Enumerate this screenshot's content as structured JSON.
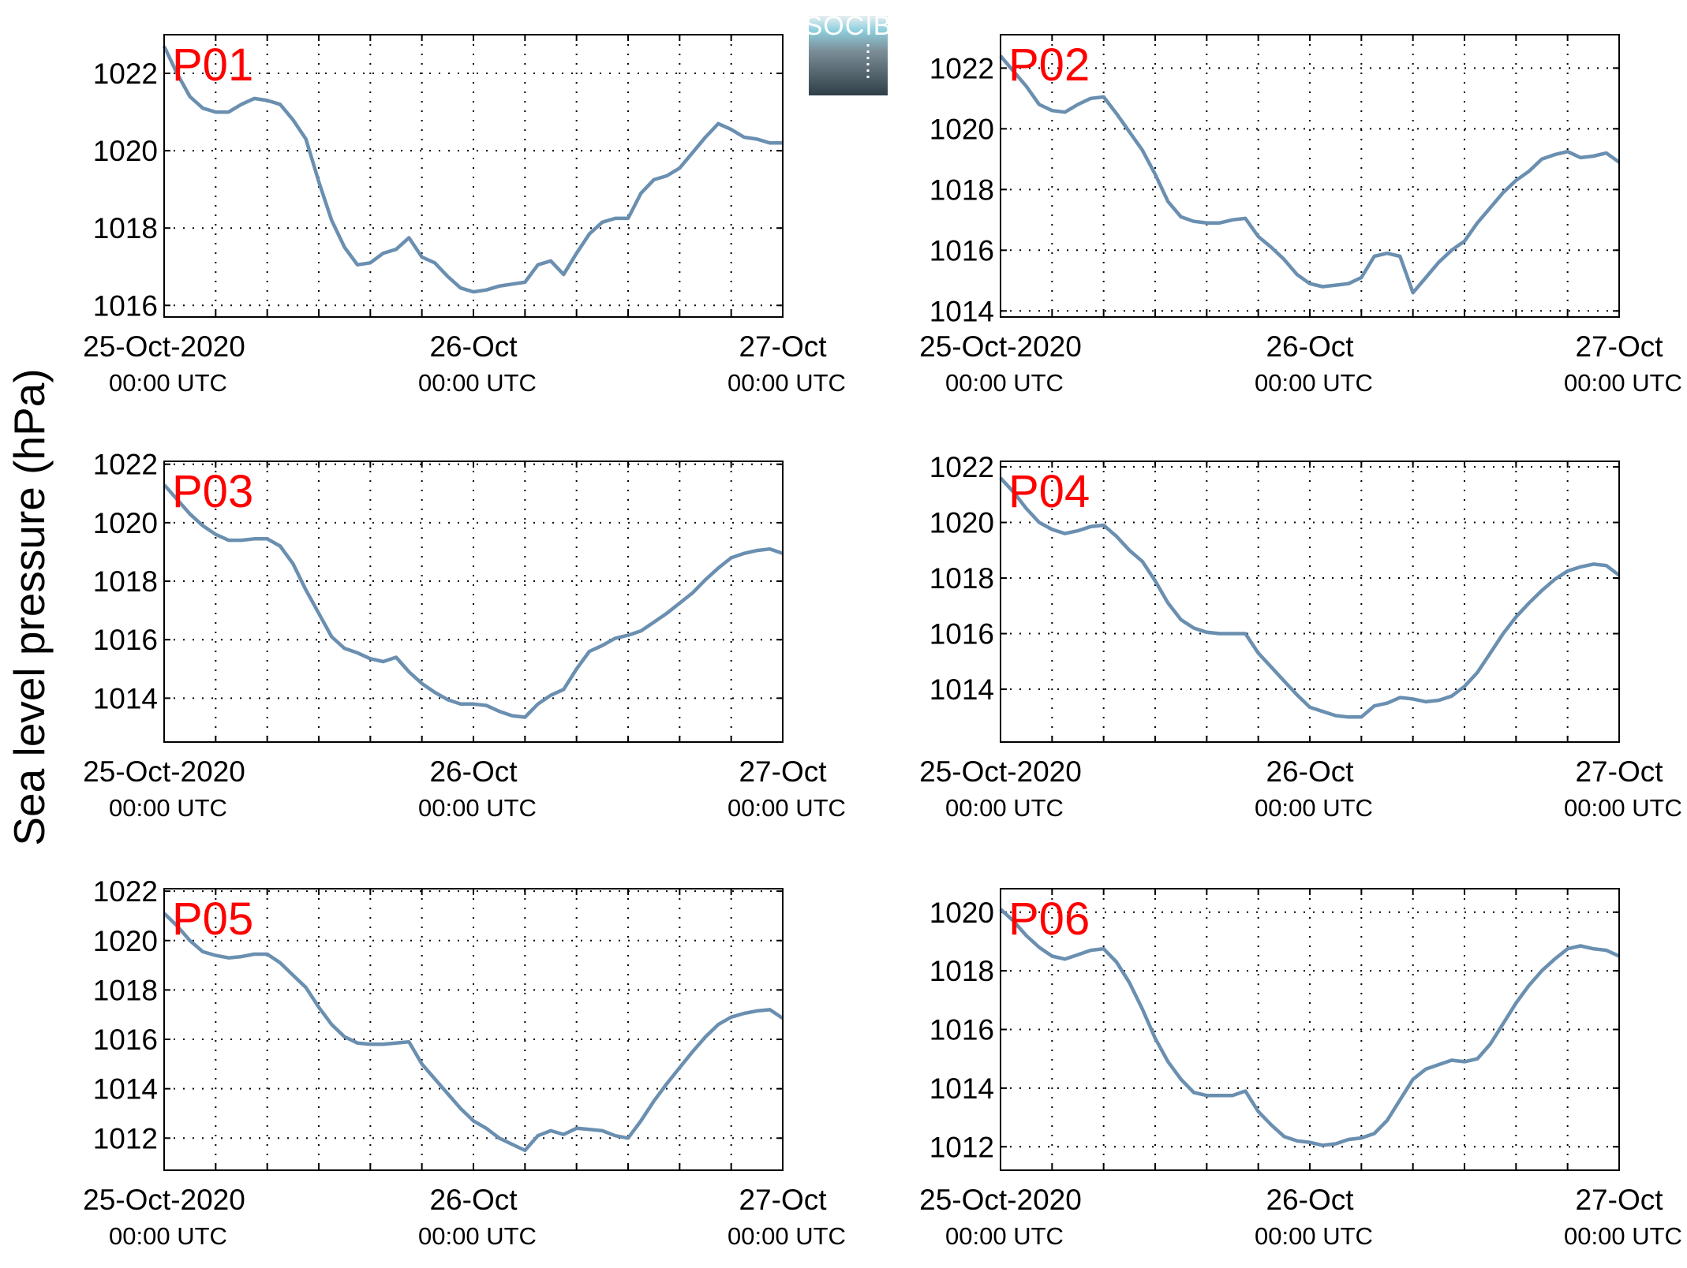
{
  "figure": {
    "ylabel": "Sea level pressure (hPa)",
    "logo_text": "SOCIB",
    "colors": {
      "line": "#6a8fb0",
      "label": "#ff0000",
      "axis": "#000000"
    }
  },
  "chart_data": [
    {
      "type": "line",
      "panel": "P01",
      "xlim": [
        0,
        48
      ],
      "ylim": [
        1015.7,
        1023.0
      ],
      "yticks": [
        1016,
        1018,
        1020,
        1022
      ],
      "xticks": [
        {
          "t": 0,
          "line1": "25-Oct-2020",
          "line2": "00:00 UTC"
        },
        {
          "t": 24,
          "line1": "26-Oct",
          "line2": "00:00 UTC"
        },
        {
          "t": 48,
          "line1": "27-Oct",
          "line2": "00:00 UTC"
        }
      ],
      "grid": true,
      "t": [
        0,
        1,
        2,
        3,
        4,
        5,
        6,
        7,
        8,
        9,
        10,
        11,
        12,
        13,
        14,
        15,
        16,
        17,
        18,
        19,
        20,
        21,
        22,
        23,
        24,
        25,
        26,
        27,
        28,
        29,
        30,
        31,
        32,
        33,
        34,
        35,
        36,
        37,
        38,
        39,
        40,
        41,
        42,
        43,
        44,
        45,
        46,
        47,
        48
      ],
      "values": [
        1022.7,
        1022.0,
        1021.4,
        1021.1,
        1021.0,
        1021.0,
        1021.2,
        1021.35,
        1021.3,
        1021.2,
        1020.8,
        1020.3,
        1019.2,
        1018.2,
        1017.5,
        1017.05,
        1017.1,
        1017.35,
        1017.45,
        1017.75,
        1017.25,
        1017.1,
        1016.75,
        1016.45,
        1016.35,
        1016.4,
        1016.5,
        1016.55,
        1016.6,
        1017.05,
        1017.15,
        1016.8,
        1017.35,
        1017.85,
        1018.15,
        1018.25,
        1018.25,
        1018.9,
        1019.25,
        1019.35,
        1019.55,
        1019.95,
        1020.35,
        1020.7,
        1020.55,
        1020.35,
        1020.3,
        1020.2,
        1020.2
      ],
      "label": "P01"
    },
    {
      "type": "line",
      "panel": "P02",
      "xlim": [
        0,
        48
      ],
      "ylim": [
        1013.8,
        1023.1
      ],
      "yticks": [
        1014,
        1016,
        1018,
        1020,
        1022
      ],
      "xticks": [
        {
          "t": 0,
          "line1": "25-Oct-2020",
          "line2": "00:00 UTC"
        },
        {
          "t": 24,
          "line1": "26-Oct",
          "line2": "00:00 UTC"
        },
        {
          "t": 48,
          "line1": "27-Oct",
          "line2": "00:00 UTC"
        }
      ],
      "grid": true,
      "t": [
        0,
        1,
        2,
        3,
        4,
        5,
        6,
        7,
        8,
        9,
        10,
        11,
        12,
        13,
        14,
        15,
        16,
        17,
        18,
        19,
        20,
        21,
        22,
        23,
        24,
        25,
        26,
        27,
        28,
        29,
        30,
        31,
        32,
        33,
        34,
        35,
        36,
        37,
        38,
        39,
        40,
        41,
        42,
        43,
        44,
        45,
        46,
        47,
        48
      ],
      "values": [
        1022.4,
        1021.9,
        1021.4,
        1020.8,
        1020.6,
        1020.55,
        1020.8,
        1021.0,
        1021.05,
        1020.5,
        1019.9,
        1019.3,
        1018.5,
        1017.6,
        1017.1,
        1016.95,
        1016.9,
        1016.9,
        1017.0,
        1017.05,
        1016.45,
        1016.1,
        1015.7,
        1015.2,
        1014.9,
        1014.8,
        1014.85,
        1014.9,
        1015.1,
        1015.8,
        1015.9,
        1015.8,
        1014.6,
        1015.1,
        1015.6,
        1016.0,
        1016.3,
        1016.9,
        1017.4,
        1017.9,
        1018.3,
        1018.6,
        1019.0,
        1019.15,
        1019.25,
        1019.05,
        1019.1,
        1019.2,
        1018.9
      ],
      "label": "P02"
    },
    {
      "type": "line",
      "panel": "P03",
      "xlim": [
        0,
        48
      ],
      "ylim": [
        1012.5,
        1022.1
      ],
      "yticks": [
        1014,
        1016,
        1018,
        1020,
        1022
      ],
      "xticks": [
        {
          "t": 0,
          "line1": "25-Oct-2020",
          "line2": "00:00 UTC"
        },
        {
          "t": 24,
          "line1": "26-Oct",
          "line2": "00:00 UTC"
        },
        {
          "t": 48,
          "line1": "27-Oct",
          "line2": "00:00 UTC"
        }
      ],
      "grid": true,
      "t": [
        0,
        1,
        2,
        3,
        4,
        5,
        6,
        7,
        8,
        9,
        10,
        11,
        12,
        13,
        14,
        15,
        16,
        17,
        18,
        19,
        20,
        21,
        22,
        23,
        24,
        25,
        26,
        27,
        28,
        29,
        30,
        31,
        32,
        33,
        34,
        35,
        36,
        37,
        38,
        39,
        40,
        41,
        42,
        43,
        44,
        45,
        46,
        47,
        48
      ],
      "values": [
        1021.3,
        1020.8,
        1020.3,
        1019.9,
        1019.6,
        1019.4,
        1019.4,
        1019.45,
        1019.45,
        1019.2,
        1018.6,
        1017.7,
        1016.9,
        1016.1,
        1015.7,
        1015.55,
        1015.35,
        1015.25,
        1015.4,
        1014.9,
        1014.5,
        1014.2,
        1013.95,
        1013.8,
        1013.8,
        1013.75,
        1013.55,
        1013.4,
        1013.35,
        1013.8,
        1014.1,
        1014.3,
        1015.0,
        1015.6,
        1015.8,
        1016.05,
        1016.15,
        1016.3,
        1016.6,
        1016.9,
        1017.25,
        1017.6,
        1018.05,
        1018.45,
        1018.8,
        1018.95,
        1019.05,
        1019.1,
        1018.95
      ],
      "label": "P03"
    },
    {
      "type": "line",
      "panel": "P04",
      "xlim": [
        0,
        48
      ],
      "ylim": [
        1012.1,
        1022.2
      ],
      "yticks": [
        1014,
        1016,
        1018,
        1020,
        1022
      ],
      "xticks": [
        {
          "t": 0,
          "line1": "25-Oct-2020",
          "line2": "00:00 UTC"
        },
        {
          "t": 24,
          "line1": "26-Oct",
          "line2": "00:00 UTC"
        },
        {
          "t": 48,
          "line1": "27-Oct",
          "line2": "00:00 UTC"
        }
      ],
      "grid": true,
      "t": [
        0,
        1,
        2,
        3,
        4,
        5,
        6,
        7,
        8,
        9,
        10,
        11,
        12,
        13,
        14,
        15,
        16,
        17,
        18,
        19,
        20,
        21,
        22,
        23,
        24,
        25,
        26,
        27,
        28,
        29,
        30,
        31,
        32,
        33,
        34,
        35,
        36,
        37,
        38,
        39,
        40,
        41,
        42,
        43,
        44,
        45,
        46,
        47,
        48
      ],
      "values": [
        1021.6,
        1021.1,
        1020.5,
        1020.0,
        1019.75,
        1019.6,
        1019.7,
        1019.85,
        1019.9,
        1019.5,
        1019.0,
        1018.6,
        1017.9,
        1017.1,
        1016.5,
        1016.2,
        1016.05,
        1016.0,
        1016.0,
        1016.0,
        1015.3,
        1014.8,
        1014.3,
        1013.8,
        1013.35,
        1013.2,
        1013.05,
        1013.0,
        1013.0,
        1013.4,
        1013.5,
        1013.7,
        1013.65,
        1013.55,
        1013.6,
        1013.75,
        1014.1,
        1014.6,
        1015.3,
        1016.0,
        1016.6,
        1017.1,
        1017.55,
        1017.95,
        1018.25,
        1018.4,
        1018.5,
        1018.45,
        1018.1
      ],
      "label": "P04"
    },
    {
      "type": "line",
      "panel": "P05",
      "xlim": [
        0,
        48
      ],
      "ylim": [
        1010.7,
        1022.1
      ],
      "yticks": [
        1012,
        1014,
        1016,
        1018,
        1020,
        1022
      ],
      "xticks": [
        {
          "t": 0,
          "line1": "25-Oct-2020",
          "line2": "00:00 UTC"
        },
        {
          "t": 24,
          "line1": "26-Oct",
          "line2": "00:00 UTC"
        },
        {
          "t": 48,
          "line1": "27-Oct",
          "line2": "00:00 UTC"
        }
      ],
      "grid": true,
      "t": [
        0,
        1,
        2,
        3,
        4,
        5,
        6,
        7,
        8,
        9,
        10,
        11,
        12,
        13,
        14,
        15,
        16,
        17,
        18,
        19,
        20,
        21,
        22,
        23,
        24,
        25,
        26,
        27,
        28,
        29,
        30,
        31,
        32,
        33,
        34,
        35,
        36,
        37,
        38,
        39,
        40,
        41,
        42,
        43,
        44,
        45,
        46,
        47,
        48
      ],
      "values": [
        1021.1,
        1020.6,
        1020.0,
        1019.55,
        1019.4,
        1019.3,
        1019.35,
        1019.45,
        1019.45,
        1019.1,
        1018.6,
        1018.1,
        1017.3,
        1016.6,
        1016.1,
        1015.85,
        1015.8,
        1015.8,
        1015.85,
        1015.9,
        1015.0,
        1014.4,
        1013.8,
        1013.2,
        1012.7,
        1012.4,
        1012.0,
        1011.75,
        1011.5,
        1012.1,
        1012.3,
        1012.15,
        1012.4,
        1012.35,
        1012.3,
        1012.1,
        1012.0,
        1012.7,
        1013.5,
        1014.2,
        1014.85,
        1015.5,
        1016.1,
        1016.6,
        1016.9,
        1017.05,
        1017.15,
        1017.2,
        1016.85
      ],
      "label": "P05"
    },
    {
      "type": "line",
      "panel": "P06",
      "xlim": [
        0,
        48
      ],
      "ylim": [
        1011.2,
        1020.8
      ],
      "yticks": [
        1012,
        1014,
        1016,
        1018,
        1020
      ],
      "xticks": [
        {
          "t": 0,
          "line1": "25-Oct-2020",
          "line2": "00:00 UTC"
        },
        {
          "t": 24,
          "line1": "26-Oct",
          "line2": "00:00 UTC"
        },
        {
          "t": 48,
          "line1": "27-Oct",
          "line2": "00:00 UTC"
        }
      ],
      "grid": true,
      "t": [
        0,
        1,
        2,
        3,
        4,
        5,
        6,
        7,
        8,
        9,
        10,
        11,
        12,
        13,
        14,
        15,
        16,
        17,
        18,
        19,
        20,
        21,
        22,
        23,
        24,
        25,
        26,
        27,
        28,
        29,
        30,
        31,
        32,
        33,
        34,
        35,
        36,
        37,
        38,
        39,
        40,
        41,
        42,
        43,
        44,
        45,
        46,
        47,
        48
      ],
      "values": [
        1020.1,
        1019.7,
        1019.2,
        1018.8,
        1018.5,
        1018.4,
        1018.55,
        1018.7,
        1018.75,
        1018.3,
        1017.6,
        1016.7,
        1015.7,
        1014.9,
        1014.3,
        1013.85,
        1013.75,
        1013.75,
        1013.75,
        1013.9,
        1013.2,
        1012.75,
        1012.35,
        1012.2,
        1012.15,
        1012.05,
        1012.1,
        1012.25,
        1012.3,
        1012.45,
        1012.9,
        1013.6,
        1014.3,
        1014.65,
        1014.8,
        1014.95,
        1014.9,
        1015.0,
        1015.5,
        1016.2,
        1016.9,
        1017.5,
        1018.0,
        1018.4,
        1018.75,
        1018.85,
        1018.75,
        1018.7,
        1018.5
      ],
      "label": "P06"
    }
  ]
}
